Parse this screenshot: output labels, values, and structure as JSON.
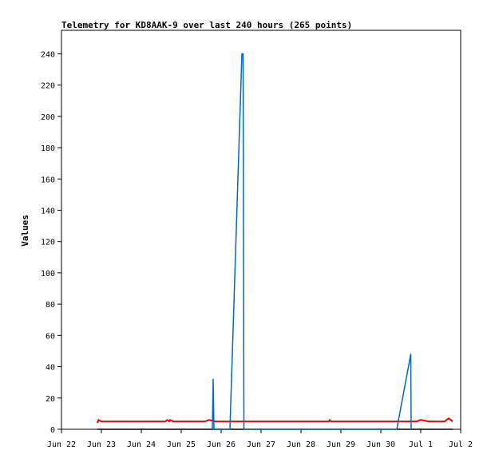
{
  "chart_data": {
    "type": "line",
    "title": "Telemetry for KD8AAK-9 over last 240 hours (265 points)",
    "xlabel": "",
    "ylabel": "Values",
    "ylim": [
      0,
      255
    ],
    "xlim": [
      0,
      10
    ],
    "x_ticks": [
      {
        "x": 0,
        "label": "Jun 22"
      },
      {
        "x": 1,
        "label": "Jun 23"
      },
      {
        "x": 2,
        "label": "Jun 24"
      },
      {
        "x": 3,
        "label": "Jun 25"
      },
      {
        "x": 4,
        "label": "Jun 26"
      },
      {
        "x": 5,
        "label": "Jun 27"
      },
      {
        "x": 6,
        "label": "Jun 28"
      },
      {
        "x": 7,
        "label": "Jun 29"
      },
      {
        "x": 8,
        "label": "Jun 30"
      },
      {
        "x": 9,
        "label": "Jul 1"
      },
      {
        "x": 10,
        "label": "Jul 2"
      }
    ],
    "y_ticks": [
      0,
      20,
      40,
      60,
      80,
      100,
      120,
      140,
      160,
      180,
      200,
      220,
      240
    ],
    "grid": false,
    "series": [
      {
        "color": "#000000",
        "x": [
          0.9,
          9.8
        ],
        "y": [
          0,
          0
        ]
      },
      {
        "color": "#e00000",
        "x": [
          0.9,
          0.93,
          1.0,
          1.8,
          2.6,
          2.65,
          2.7,
          2.72,
          2.8,
          3.5,
          3.6,
          3.7,
          3.85,
          4.0,
          4.5,
          5.0,
          6.0,
          6.7,
          6.72,
          6.75,
          7.5,
          8.5,
          8.9,
          9.0,
          9.2,
          9.6,
          9.65,
          9.7,
          9.8
        ],
        "y": [
          4,
          6,
          5,
          5,
          5,
          6,
          5,
          6,
          5,
          5,
          5,
          6,
          5,
          5,
          5,
          5,
          5,
          5,
          6,
          5,
          5,
          5,
          5,
          6,
          5,
          5,
          6,
          7,
          5
        ]
      },
      {
        "color": "#0066cc",
        "x": [
          3.78,
          3.8,
          3.82,
          4.22,
          4.52,
          4.55,
          4.57,
          8.4,
          8.75,
          8.76
        ],
        "y": [
          0,
          32,
          0,
          0,
          240,
          240,
          0,
          0,
          48,
          0
        ]
      }
    ]
  }
}
